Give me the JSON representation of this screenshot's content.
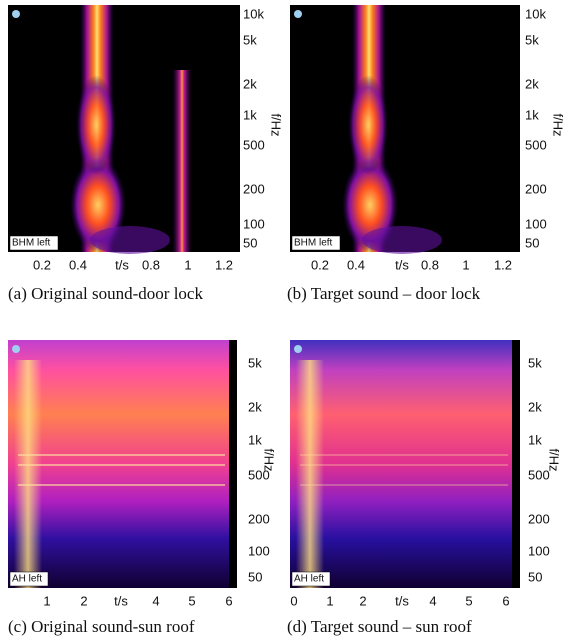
{
  "panels": [
    {
      "caption": "(a) Original sound-door lock",
      "inset_label": "BHM left",
      "y_axis_label": "f/Hz",
      "x_axis_label": "t/s",
      "y_tick_labels": [
        "10k",
        "5k",
        "2k",
        "1k",
        "500",
        "200",
        "100",
        "50"
      ],
      "x_tick_labels": [
        "0.2",
        "0.4",
        "0.8",
        "1",
        "1.2"
      ]
    },
    {
      "caption": "(b) Target sound – door lock",
      "inset_label": "BHM left",
      "y_axis_label": "f/Hz",
      "x_axis_label": "t/s",
      "y_tick_labels": [
        "10k",
        "5k",
        "2k",
        "1k",
        "500",
        "200",
        "100",
        "50"
      ],
      "x_tick_labels": [
        "0.2",
        "0.4",
        "0.8",
        "1",
        "1.2"
      ]
    },
    {
      "caption": "(c) Original sound-sun roof",
      "inset_label": "AH left",
      "y_axis_label": "f/Hz",
      "x_axis_label": "t/s",
      "y_tick_labels": [
        "5k",
        "2k",
        "1k",
        "500",
        "200",
        "100",
        "50"
      ],
      "x_tick_labels": [
        "1",
        "2",
        "4",
        "5",
        "6"
      ]
    },
    {
      "caption": "(d) Target sound – sun roof",
      "inset_label": "AH left",
      "y_axis_label": "f/Hz",
      "x_axis_label": "t/s",
      "y_tick_labels": [
        "5k",
        "2k",
        "1k",
        "500",
        "200",
        "100",
        "50"
      ],
      "x_tick_labels": [
        "0",
        "1",
        "2",
        "4",
        "5",
        "6"
      ]
    }
  ]
}
